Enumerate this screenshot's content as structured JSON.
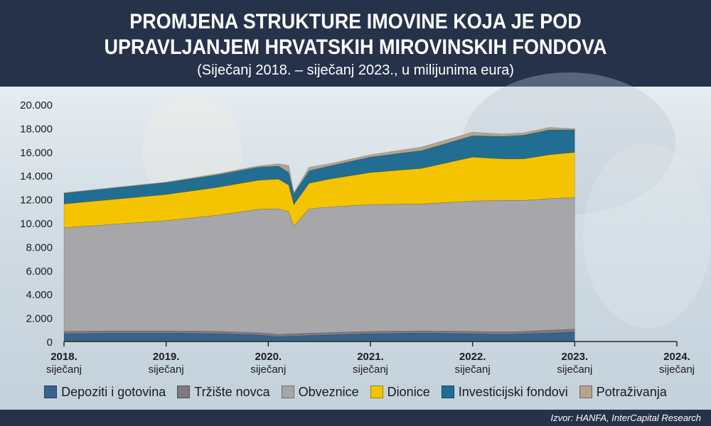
{
  "header": {
    "title_line1": "PROMJENA STRUKTURE IMOVINE KOJA JE POD",
    "title_line2": "UPRAVLJANJEM HRVATSKIH MIROVINSKIH FONDOVA",
    "subtitle": "(Siječanj 2018. – siječanj 2023., u milijunima eura)"
  },
  "footer": {
    "source": "Izvor: HANFA, InterCapital Research"
  },
  "chart_data": {
    "type": "area",
    "stacked": true,
    "x_axis": {
      "ticks": [
        {
          "year": "2018.",
          "month": "siječanj"
        },
        {
          "year": "2019.",
          "month": "siječanj"
        },
        {
          "year": "2020.",
          "month": "siječanj"
        },
        {
          "year": "2021.",
          "month": "siječanj"
        },
        {
          "year": "2022.",
          "month": "siječanj"
        },
        {
          "year": "2023.",
          "month": "siječanj"
        },
        {
          "year": "2024.",
          "month": "siječanj"
        }
      ],
      "range": [
        2018.0,
        2024.0
      ]
    },
    "y_axis": {
      "ticks": [
        "0",
        "2.000",
        "4.000",
        "6.000",
        "8.000",
        "10.000",
        "12.000",
        "14.000",
        "16.000",
        "18.000",
        "20.000"
      ],
      "range": [
        0,
        20000
      ]
    },
    "x": [
      2018.0,
      2018.5,
      2019.0,
      2019.5,
      2019.9,
      2020.1,
      2020.2,
      2020.25,
      2020.4,
      2020.6,
      2021.0,
      2021.5,
      2022.0,
      2022.3,
      2022.5,
      2022.75,
      2023.0
    ],
    "series": [
      {
        "name": "Depoziti i gotovina",
        "color": "#36648c",
        "values": [
          650,
          700,
          700,
          650,
          550,
          400,
          450,
          450,
          500,
          550,
          650,
          700,
          650,
          600,
          650,
          700,
          800
        ]
      },
      {
        "name": "Tržište novca",
        "color": "#7d7a82",
        "values": [
          200,
          200,
          200,
          200,
          200,
          200,
          200,
          200,
          200,
          200,
          200,
          200,
          200,
          200,
          200,
          250,
          250
        ]
      },
      {
        "name": "Obveznice",
        "color": "#a7a7a9",
        "values": [
          8750,
          9000,
          9300,
          9800,
          10400,
          10600,
          10300,
          9100,
          10500,
          10600,
          10700,
          10700,
          11000,
          11100,
          11050,
          11100,
          11100
        ]
      },
      {
        "name": "Dionice",
        "color": "#f5c400",
        "values": [
          2000,
          2100,
          2200,
          2350,
          2450,
          2500,
          2250,
          1800,
          2150,
          2350,
          2700,
          3000,
          3700,
          3500,
          3500,
          3700,
          3800
        ]
      },
      {
        "name": "Investicijski fondovi",
        "color": "#216e92",
        "values": [
          900,
          950,
          1000,
          1050,
          1100,
          1100,
          1050,
          900,
          1050,
          1100,
          1300,
          1500,
          1800,
          1900,
          2000,
          2100,
          1900
        ]
      },
      {
        "name": "Potraživanja",
        "color": "#b4a48d",
        "values": [
          50,
          50,
          50,
          100,
          100,
          200,
          600,
          100,
          300,
          200,
          200,
          300,
          300,
          200,
          200,
          200,
          100
        ]
      }
    ]
  }
}
